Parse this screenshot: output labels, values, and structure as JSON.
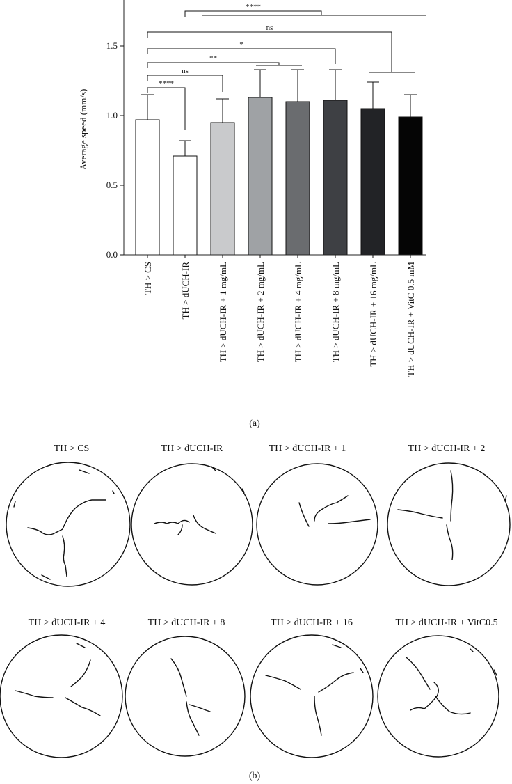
{
  "chart_data": {
    "type": "bar",
    "ylabel": "Average speed (mm/s)",
    "ylim": [
      0,
      1.8
    ],
    "yticks": [
      0.0,
      0.5,
      1.0,
      1.5
    ],
    "ytick_labels": [
      "0.0",
      "0.5",
      "1.0",
      "1.5"
    ],
    "categories": [
      "TH > CS",
      "TH > dUCH-IR",
      "TH > dUCH-IR + 1 mg/mL",
      "TH > dUCH-IR + 2 mg/mL",
      "TH > dUCH-IR + 4 mg/mL",
      "TH > dUCH-IR + 8 mg/mL",
      "TH > dUCH-IR + 16 mg/mL",
      "TH > dUCH-IR + VitC 0.5 mM"
    ],
    "values": [
      0.97,
      0.71,
      0.95,
      1.13,
      1.1,
      1.11,
      1.05,
      0.99
    ],
    "errors": [
      0.18,
      0.11,
      0.17,
      0.2,
      0.23,
      0.22,
      0.19,
      0.16
    ],
    "bar_colors": [
      "#ffffff",
      "#ffffff",
      "#c9cacc",
      "#9fa2a5",
      "#6a6c6f",
      "#3e4044",
      "#222326",
      "#050505"
    ],
    "significance": [
      {
        "label": "****",
        "from": 0,
        "to": 1,
        "y": 1.2
      },
      {
        "label": "ns",
        "from": 0,
        "to": 2,
        "y": 1.29
      },
      {
        "label": "**",
        "from": 0,
        "to": "3-4",
        "y": 1.38
      },
      {
        "label": "*",
        "from": 0,
        "to": 5,
        "y": 1.48
      },
      {
        "label": "ns",
        "from": 0,
        "to": "6-7",
        "y": 1.6
      },
      {
        "label": "****",
        "from": 1,
        "to": "2-7",
        "y": 1.75
      }
    ],
    "panel_label": "(a)"
  },
  "tracks": {
    "panels": [
      {
        "title": "TH > CS"
      },
      {
        "title": "TH > dUCH-IR"
      },
      {
        "title": "TH > dUCH-IR + 1"
      },
      {
        "title": "TH > dUCH-IR + 2"
      },
      {
        "title": "TH > dUCH-IR + 4"
      },
      {
        "title": "TH > dUCH-IR + 8"
      },
      {
        "title": "TH > dUCH-IR + 16"
      },
      {
        "title": "TH > dUCH-IR + VitC0.5"
      }
    ],
    "panel_label": "(b)"
  }
}
